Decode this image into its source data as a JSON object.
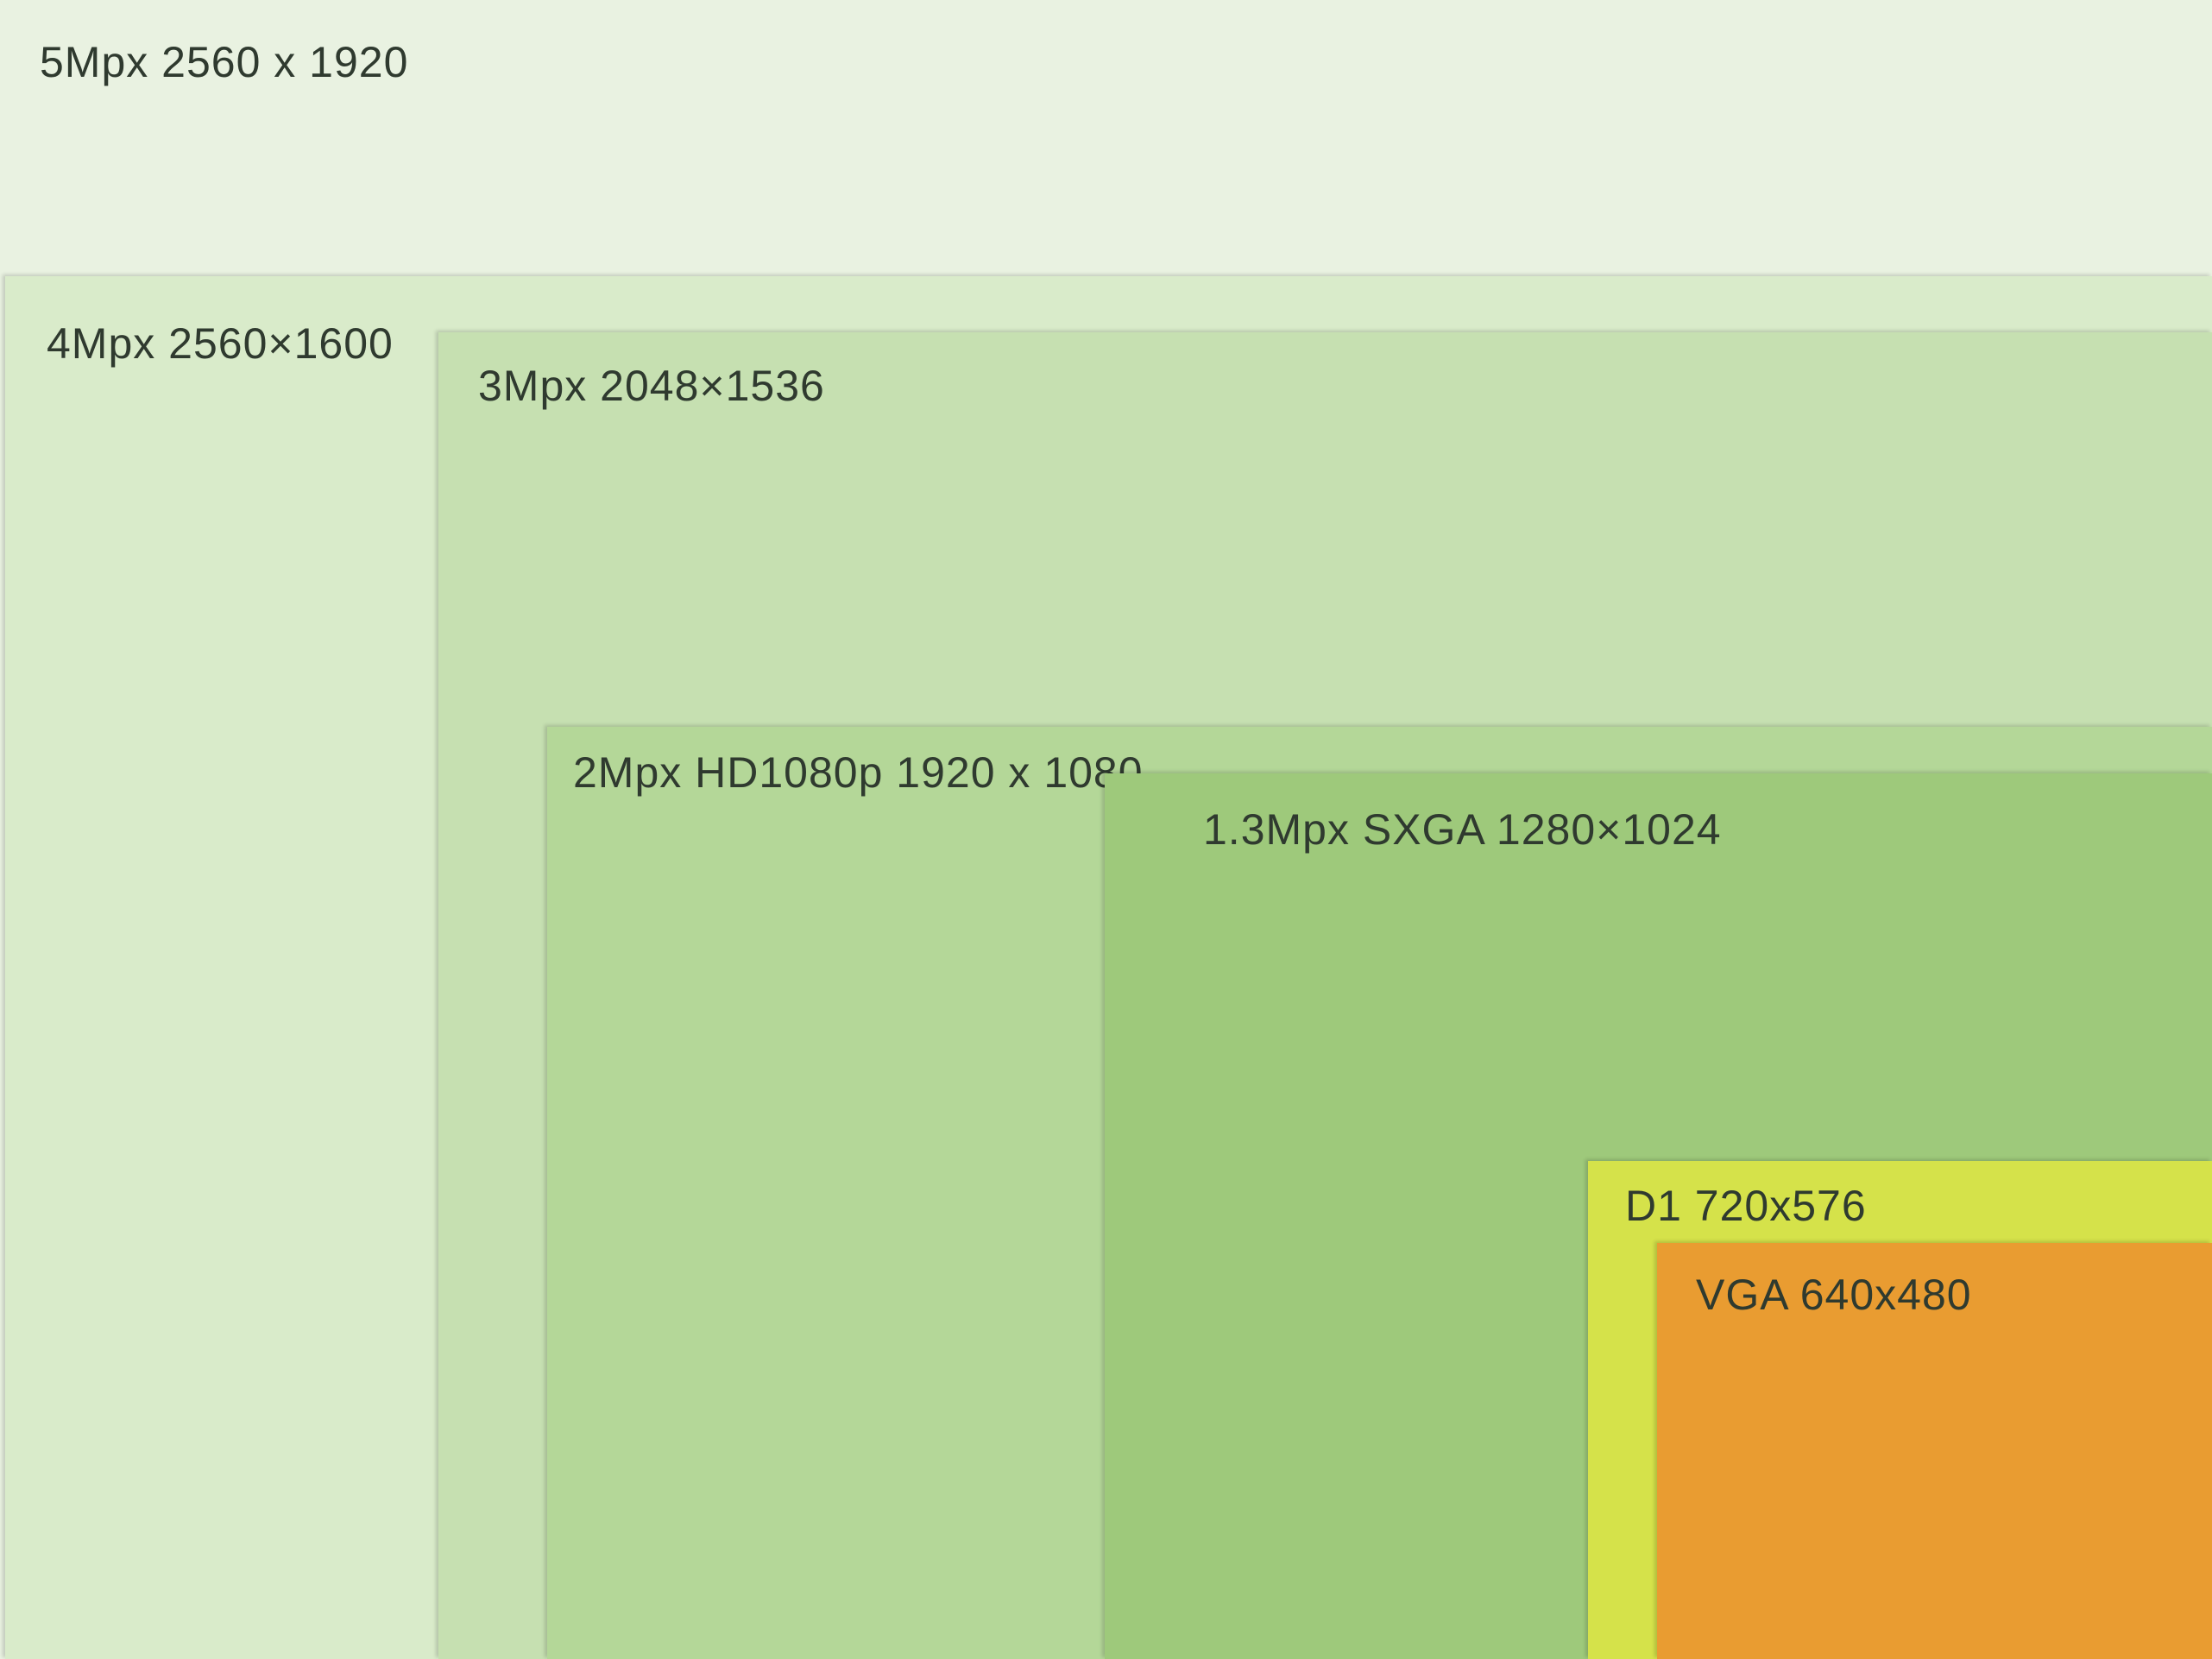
{
  "resolutions": [
    {
      "id": "r5mp",
      "label": "5Mpx 2560 x 1920",
      "color": "#e9f2e1"
    },
    {
      "id": "r4mp",
      "label": "4Mpx 2560×1600",
      "color": "#d9ebca"
    },
    {
      "id": "r3mp",
      "label": "3Mpx 2048×1536",
      "color": "#c6e0b1"
    },
    {
      "id": "r2mp",
      "label": "2Mpx HD1080p 1920 x 1080",
      "color": "#b4d798"
    },
    {
      "id": "r13mp",
      "label": "1.3Mpx SXGA 1280×1024",
      "color": "#9ec97b"
    },
    {
      "id": "rd1",
      "label": "D1 720x576",
      "color": "#d5e24a"
    },
    {
      "id": "rvga",
      "label": "VGA 640x480",
      "color": "#e99c31"
    }
  ]
}
